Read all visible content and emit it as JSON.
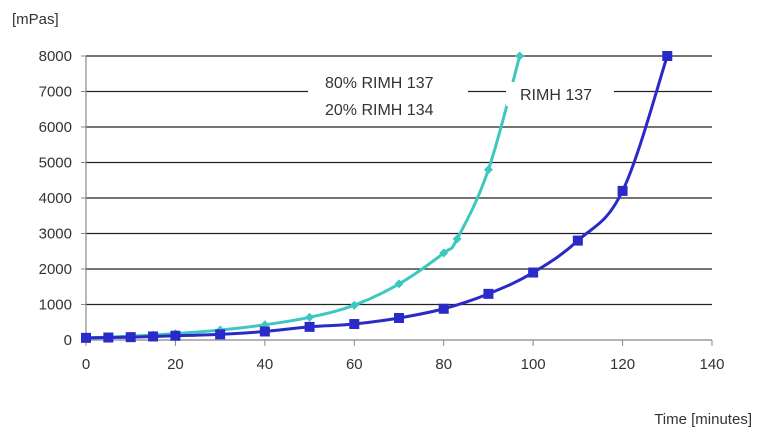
{
  "chart_data": {
    "type": "line",
    "ylabel": "[mPas]",
    "xlabel": "Time  [minutes]",
    "xlim": [
      0,
      140
    ],
    "ylim": [
      0,
      8000
    ],
    "xticks": [
      0,
      20,
      40,
      60,
      80,
      100,
      120,
      140
    ],
    "yticks": [
      0,
      1000,
      2000,
      3000,
      4000,
      5000,
      6000,
      7000,
      8000
    ],
    "grid": "horizontal",
    "series": [
      {
        "name": "80% RIMH 137 20% RIMH 134",
        "label_lines": [
          "80% RIMH 137",
          "20% RIMH 134"
        ],
        "color": "#3cc8c0",
        "marker": "diamond",
        "x": [
          0,
          5,
          10,
          15,
          20,
          30,
          40,
          50,
          60,
          70,
          80,
          83,
          90,
          97
        ],
        "y": [
          60,
          80,
          110,
          140,
          180,
          280,
          430,
          640,
          980,
          1580,
          2450,
          2850,
          4800,
          8000
        ]
      },
      {
        "name": "RIMH 137",
        "label_lines": [
          "RIMH 137"
        ],
        "color": "#2a2ac8",
        "marker": "square",
        "x": [
          0,
          5,
          10,
          15,
          20,
          30,
          40,
          50,
          60,
          70,
          80,
          90,
          100,
          110,
          120,
          130
        ],
        "y": [
          60,
          70,
          80,
          100,
          120,
          160,
          240,
          370,
          450,
          620,
          880,
          1300,
          1900,
          2800,
          4200,
          8000
        ]
      }
    ]
  }
}
